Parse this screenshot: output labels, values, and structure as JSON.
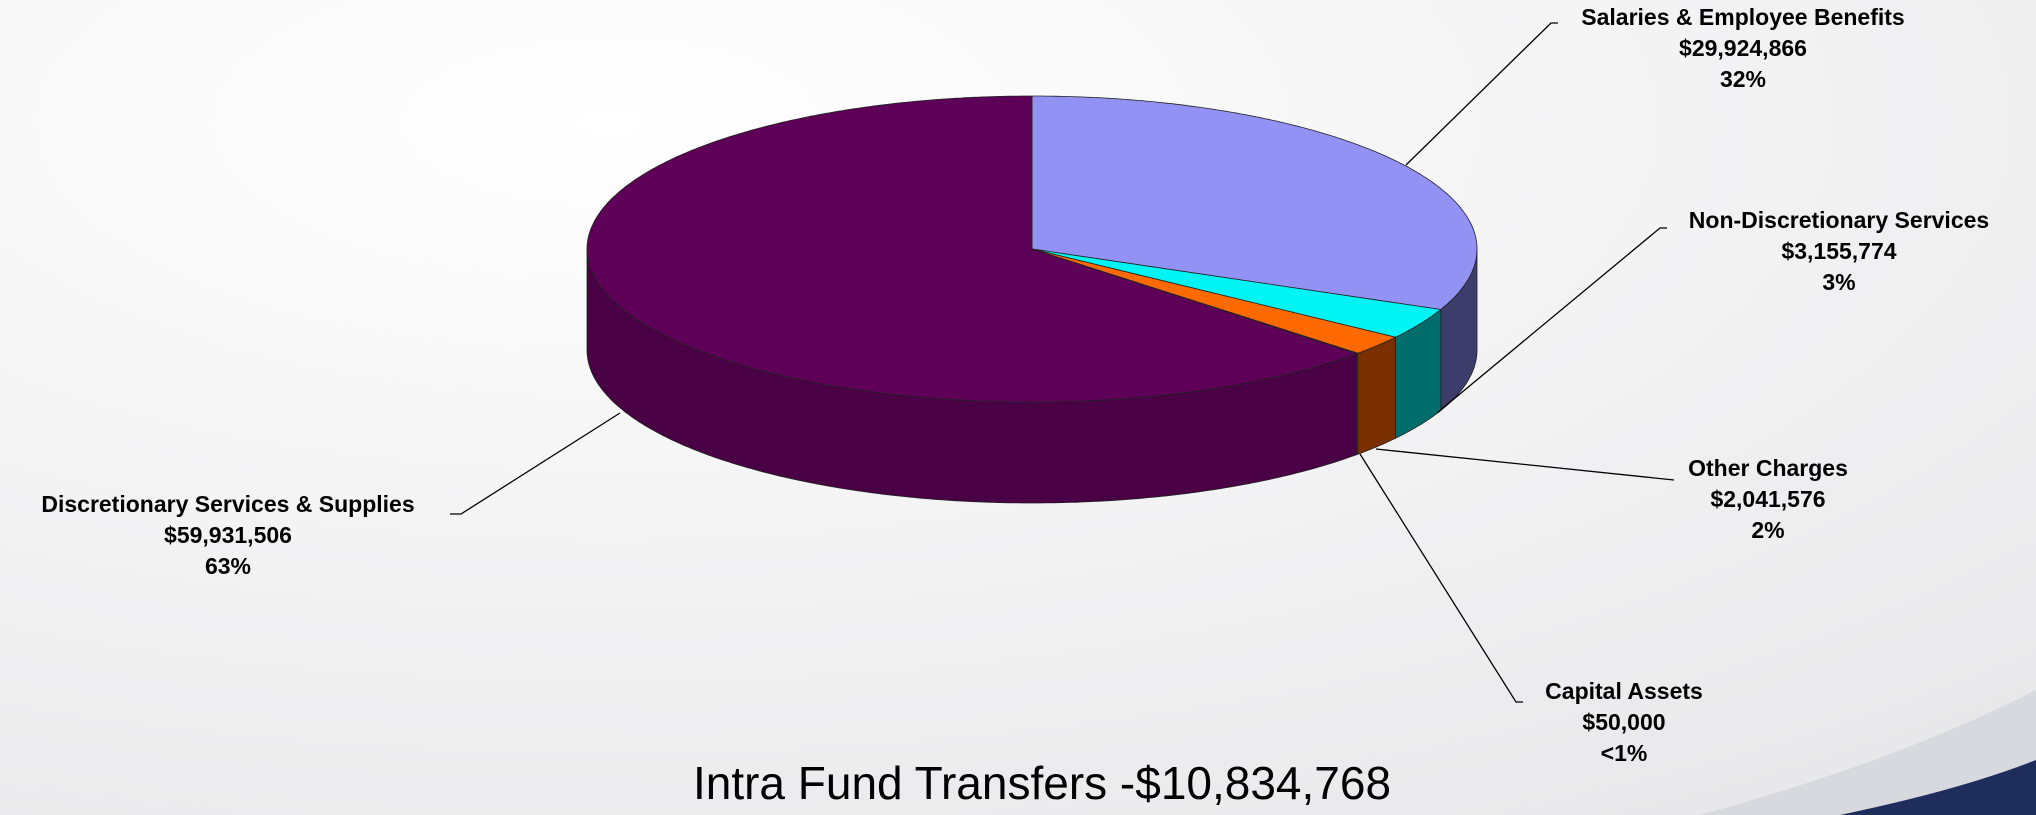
{
  "chart_data": {
    "type": "pie3d",
    "categories": [
      "Salaries & Employee Benefits",
      "Non-Discretionary Services",
      "Other Charges",
      "Capital Assets",
      "Discretionary Services & Supplies"
    ],
    "values": [
      29924866,
      3155774,
      2041576,
      50000,
      59931506
    ],
    "value_labels": [
      "$29,924,866",
      "$3,155,774",
      "$2,041,576",
      "$50,000",
      "$59,931,506"
    ],
    "percent_labels": [
      "32%",
      "3%",
      "2%",
      "<1%",
      "63%"
    ],
    "colors": [
      "#9292f4",
      "#00f4f4",
      "#ff6a00",
      "#7a2a00",
      "#5e0057"
    ],
    "side_colors": [
      "#3d3d6b",
      "#006c6c",
      "#7a3000",
      "#6b2a00",
      "#4a0045"
    ],
    "footnote": "Intra Fund Transfers -$10,834,768"
  }
}
